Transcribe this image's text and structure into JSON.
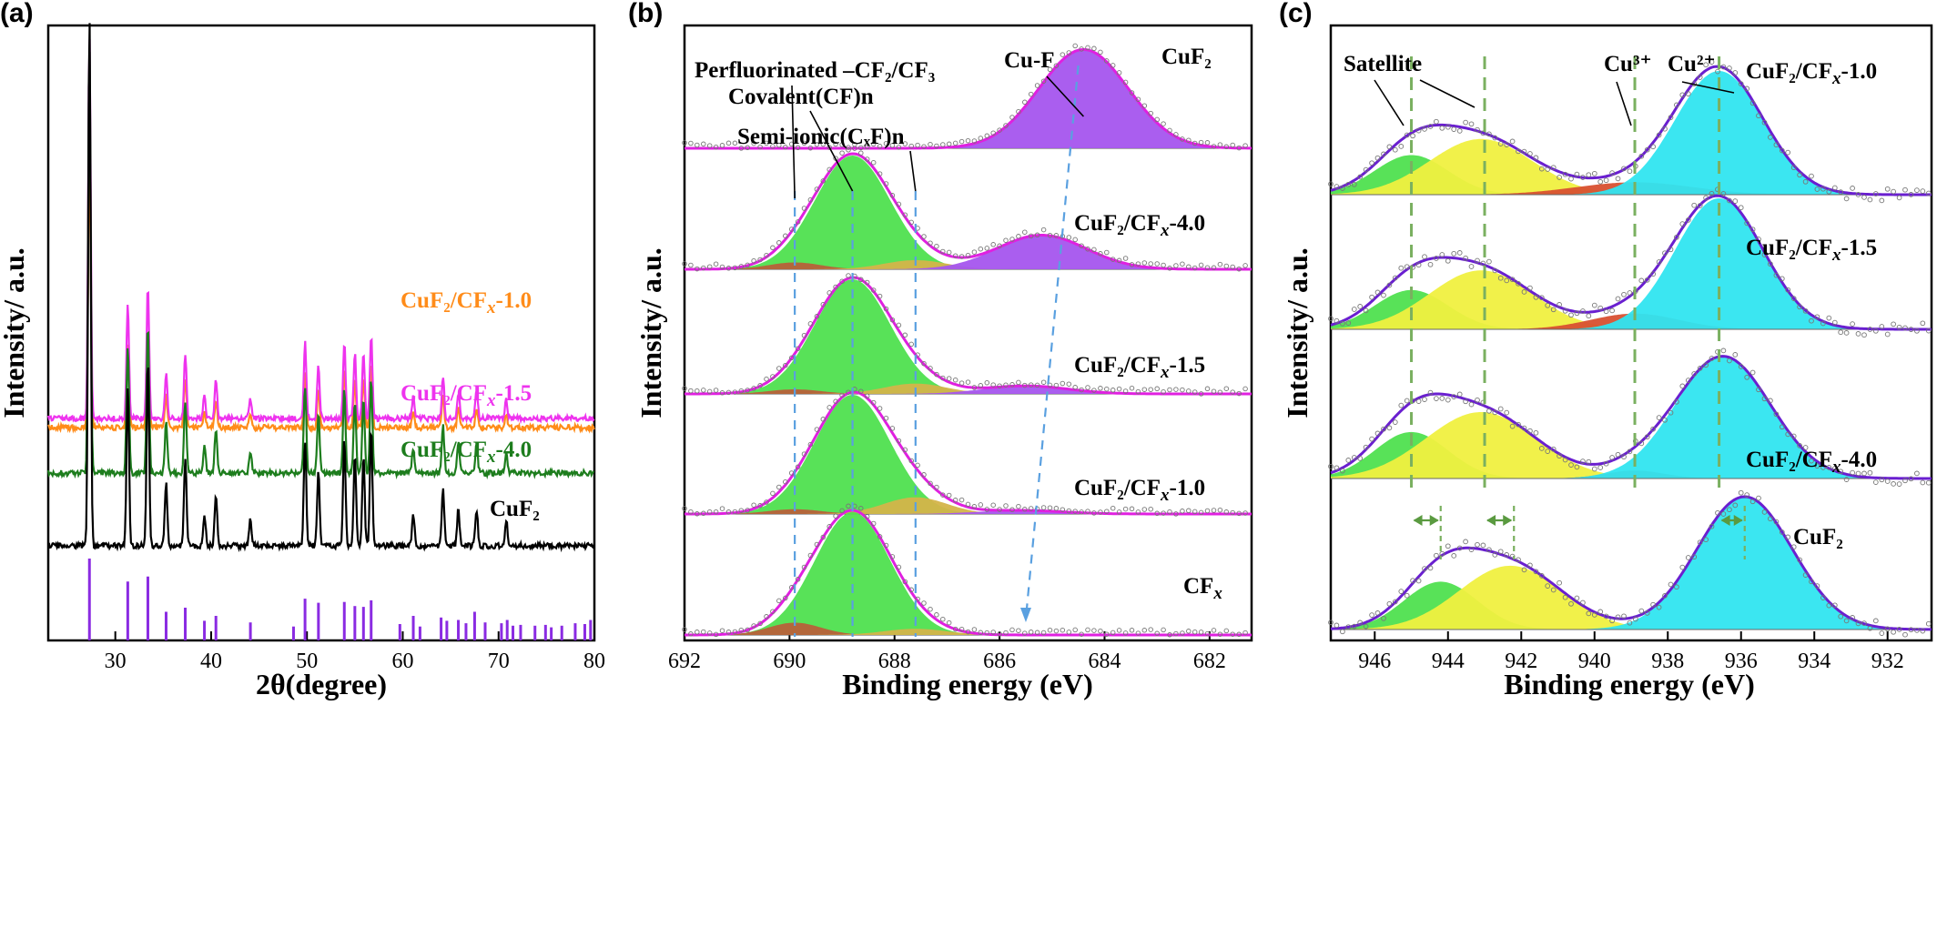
{
  "chart_data": [
    {
      "panel": "(a)",
      "type": "line",
      "xlabel": "2θ(degree)",
      "ylabel": "Intensity/ a.u.",
      "xlim": [
        23,
        80
      ],
      "xticks": [
        30,
        40,
        50,
        60,
        70,
        80
      ],
      "peaks": [
        27.3,
        31.3,
        33.4,
        35.3,
        37.3,
        39.3,
        40.5,
        44.1,
        49.8,
        51.2,
        53.9,
        55.0,
        55.9,
        56.7,
        61.1,
        64.2,
        65.8,
        67.7,
        70.8
      ],
      "peak_heights": [
        1.0,
        0.3,
        0.35,
        0.12,
        0.17,
        0.06,
        0.1,
        0.05,
        0.2,
        0.14,
        0.2,
        0.17,
        0.17,
        0.22,
        0.06,
        0.11,
        0.07,
        0.07,
        0.05
      ],
      "reference_sticks": {
        "positions": [
          27.3,
          31.3,
          33.4,
          35.3,
          37.3,
          39.3,
          40.5,
          44.1,
          48.6,
          49.8,
          51.2,
          53.9,
          55.0,
          55.9,
          56.7,
          59.7,
          61.1,
          61.8,
          64.0,
          64.6,
          65.8,
          66.6,
          67.5,
          68.6,
          70.3,
          70.9,
          71.5,
          72.3,
          73.8,
          74.9,
          75.5,
          76.6,
          78.0,
          79.0,
          79.6
        ],
        "heights": [
          1.0,
          0.72,
          0.78,
          0.35,
          0.4,
          0.24,
          0.3,
          0.22,
          0.17,
          0.51,
          0.46,
          0.47,
          0.42,
          0.41,
          0.49,
          0.2,
          0.3,
          0.17,
          0.28,
          0.24,
          0.25,
          0.21,
          0.35,
          0.22,
          0.21,
          0.25,
          0.18,
          0.19,
          0.18,
          0.19,
          0.16,
          0.18,
          0.21,
          0.2,
          0.25
        ]
      },
      "series": [
        {
          "name": "CuF₂/CF",
          "name_sub": "x",
          "name_tail": "-1.0",
          "color": "#ff8c1a",
          "scale": 0.85
        },
        {
          "name": "CuF₂/CF",
          "name_sub": "x",
          "name_tail": "-1.5",
          "color": "#ee33ee",
          "scale": 1.0
        },
        {
          "name": "CuF₂/CF",
          "name_sub": "x",
          "name_tail": "-4.0",
          "color": "#1d7d1d",
          "scale": 1.0
        },
        {
          "name": "CuF₂",
          "name_sub": "",
          "name_tail": "",
          "color": "#000000",
          "scale": 1.0
        }
      ]
    },
    {
      "panel": "(b)",
      "type": "line",
      "xlabel": "Binding energy (eV)",
      "ylabel": "Intensity/ a.u.",
      "xlim": [
        692,
        681.2
      ],
      "xticks": [
        692,
        690,
        688,
        686,
        684,
        682
      ],
      "reference_lines": [
        689.9,
        688.8,
        687.6
      ],
      "annotations": [
        "Perfluorinated –CF₂/CF₃",
        "Covalent(CF)n",
        "Semi-ionic(CₓF)n",
        "Cu-F"
      ],
      "series": [
        {
          "name": "CuF₂",
          "components": [
            {
              "center": 684.4,
              "width": 0.85,
              "amp": 0.92,
              "color": "#a555ee"
            }
          ]
        },
        {
          "name": "CuF₂/CF",
          "name_sub": "x",
          "name_tail": "-4.0",
          "components": [
            {
              "center": 688.8,
              "width": 0.72,
              "amp": 1.0,
              "color": "#4fe04f"
            },
            {
              "center": 689.9,
              "width": 0.5,
              "amp": 0.06,
              "color": "#b8603a"
            },
            {
              "center": 687.6,
              "width": 0.6,
              "amp": 0.08,
              "color": "#d4b44a"
            },
            {
              "center": 685.2,
              "width": 0.85,
              "amp": 0.3,
              "color": "#a555ee"
            }
          ]
        },
        {
          "name": "CuF₂/CF",
          "name_sub": "x",
          "name_tail": "-1.5",
          "components": [
            {
              "center": 688.8,
              "width": 0.72,
              "amp": 1.0,
              "color": "#4fe04f"
            },
            {
              "center": 689.9,
              "width": 0.5,
              "amp": 0.04,
              "color": "#b8603a"
            },
            {
              "center": 687.6,
              "width": 0.6,
              "amp": 0.09,
              "color": "#d4b44a"
            },
            {
              "center": 685.5,
              "width": 0.8,
              "amp": 0.07,
              "color": "#a555ee"
            }
          ]
        },
        {
          "name": "CuF₂/CF",
          "name_sub": "x",
          "name_tail": "-1.0",
          "components": [
            {
              "center": 688.8,
              "width": 0.72,
              "amp": 1.0,
              "color": "#4fe04f"
            },
            {
              "center": 689.9,
              "width": 0.5,
              "amp": 0.04,
              "color": "#b8603a"
            },
            {
              "center": 687.6,
              "width": 0.6,
              "amp": 0.14,
              "color": "#d4b44a"
            },
            {
              "center": 685.6,
              "width": 0.8,
              "amp": 0.03,
              "color": "#a555ee"
            }
          ]
        },
        {
          "name": "CF",
          "name_sub": "x",
          "name_tail": "",
          "components": [
            {
              "center": 688.8,
              "width": 0.72,
              "amp": 1.0,
              "color": "#4fe04f"
            },
            {
              "center": 689.9,
              "width": 0.5,
              "amp": 0.1,
              "color": "#b8603a"
            },
            {
              "center": 687.6,
              "width": 0.6,
              "amp": 0.05,
              "color": "#d4b44a"
            }
          ]
        }
      ]
    },
    {
      "panel": "(c)",
      "type": "line",
      "xlabel": "Binding energy (eV)",
      "ylabel": "Intensity/ a.u.",
      "xlim": [
        947.2,
        930.8
      ],
      "xticks": [
        946,
        944,
        942,
        940,
        938,
        936,
        934,
        932
      ],
      "reference_lines": [
        945.0,
        943.0,
        938.9,
        936.6
      ],
      "annotations": [
        "Satellite",
        "Cu³⁺",
        "Cu²⁺"
      ],
      "series": [
        {
          "name": "CuF₂/CF",
          "name_sub": "x",
          "name_tail": "-1.0",
          "components": [
            {
              "center": 945.0,
              "width": 1.0,
              "amp": 0.32,
              "color": "#4fe04f"
            },
            {
              "center": 943.1,
              "width": 1.4,
              "amp": 0.45,
              "color": "#f0f040"
            },
            {
              "center": 938.9,
              "width": 1.6,
              "amp": 0.1,
              "color": "#d85030"
            },
            {
              "center": 936.6,
              "width": 1.2,
              "amp": 1.0,
              "color": "#30e5f0"
            }
          ]
        },
        {
          "name": "CuF₂/CF",
          "name_sub": "x",
          "name_tail": "-1.5",
          "components": [
            {
              "center": 945.0,
              "width": 1.0,
              "amp": 0.3,
              "color": "#4fe04f"
            },
            {
              "center": 943.1,
              "width": 1.4,
              "amp": 0.45,
              "color": "#f0f040"
            },
            {
              "center": 938.9,
              "width": 1.2,
              "amp": 0.12,
              "color": "#d85030"
            },
            {
              "center": 936.6,
              "width": 1.2,
              "amp": 1.0,
              "color": "#30e5f0"
            }
          ]
        },
        {
          "name": "CuF₂/CF",
          "name_sub": "x",
          "name_tail": "-4.0",
          "components": [
            {
              "center": 945.0,
              "width": 1.0,
              "amp": 0.35,
              "color": "#4fe04f"
            },
            {
              "center": 943.1,
              "width": 1.5,
              "amp": 0.5,
              "color": "#f0f040"
            },
            {
              "center": 938.9,
              "width": 0.8,
              "amp": 0.06,
              "color": "#d85030"
            },
            {
              "center": 936.5,
              "width": 1.3,
              "amp": 0.92,
              "color": "#30e5f0"
            }
          ]
        },
        {
          "name": "CuF₂",
          "name_sub": "",
          "name_tail": "",
          "components": [
            {
              "center": 944.2,
              "width": 1.0,
              "amp": 0.36,
              "color": "#4fe04f"
            },
            {
              "center": 942.3,
              "width": 1.4,
              "amp": 0.48,
              "color": "#f0f040"
            },
            {
              "center": 935.9,
              "width": 1.3,
              "amp": 1.0,
              "color": "#30e5f0"
            }
          ]
        }
      ],
      "shift_arrows": [
        [
          945.0,
          944.2
        ],
        [
          943.0,
          942.2
        ],
        [
          936.6,
          935.9
        ]
      ]
    }
  ]
}
